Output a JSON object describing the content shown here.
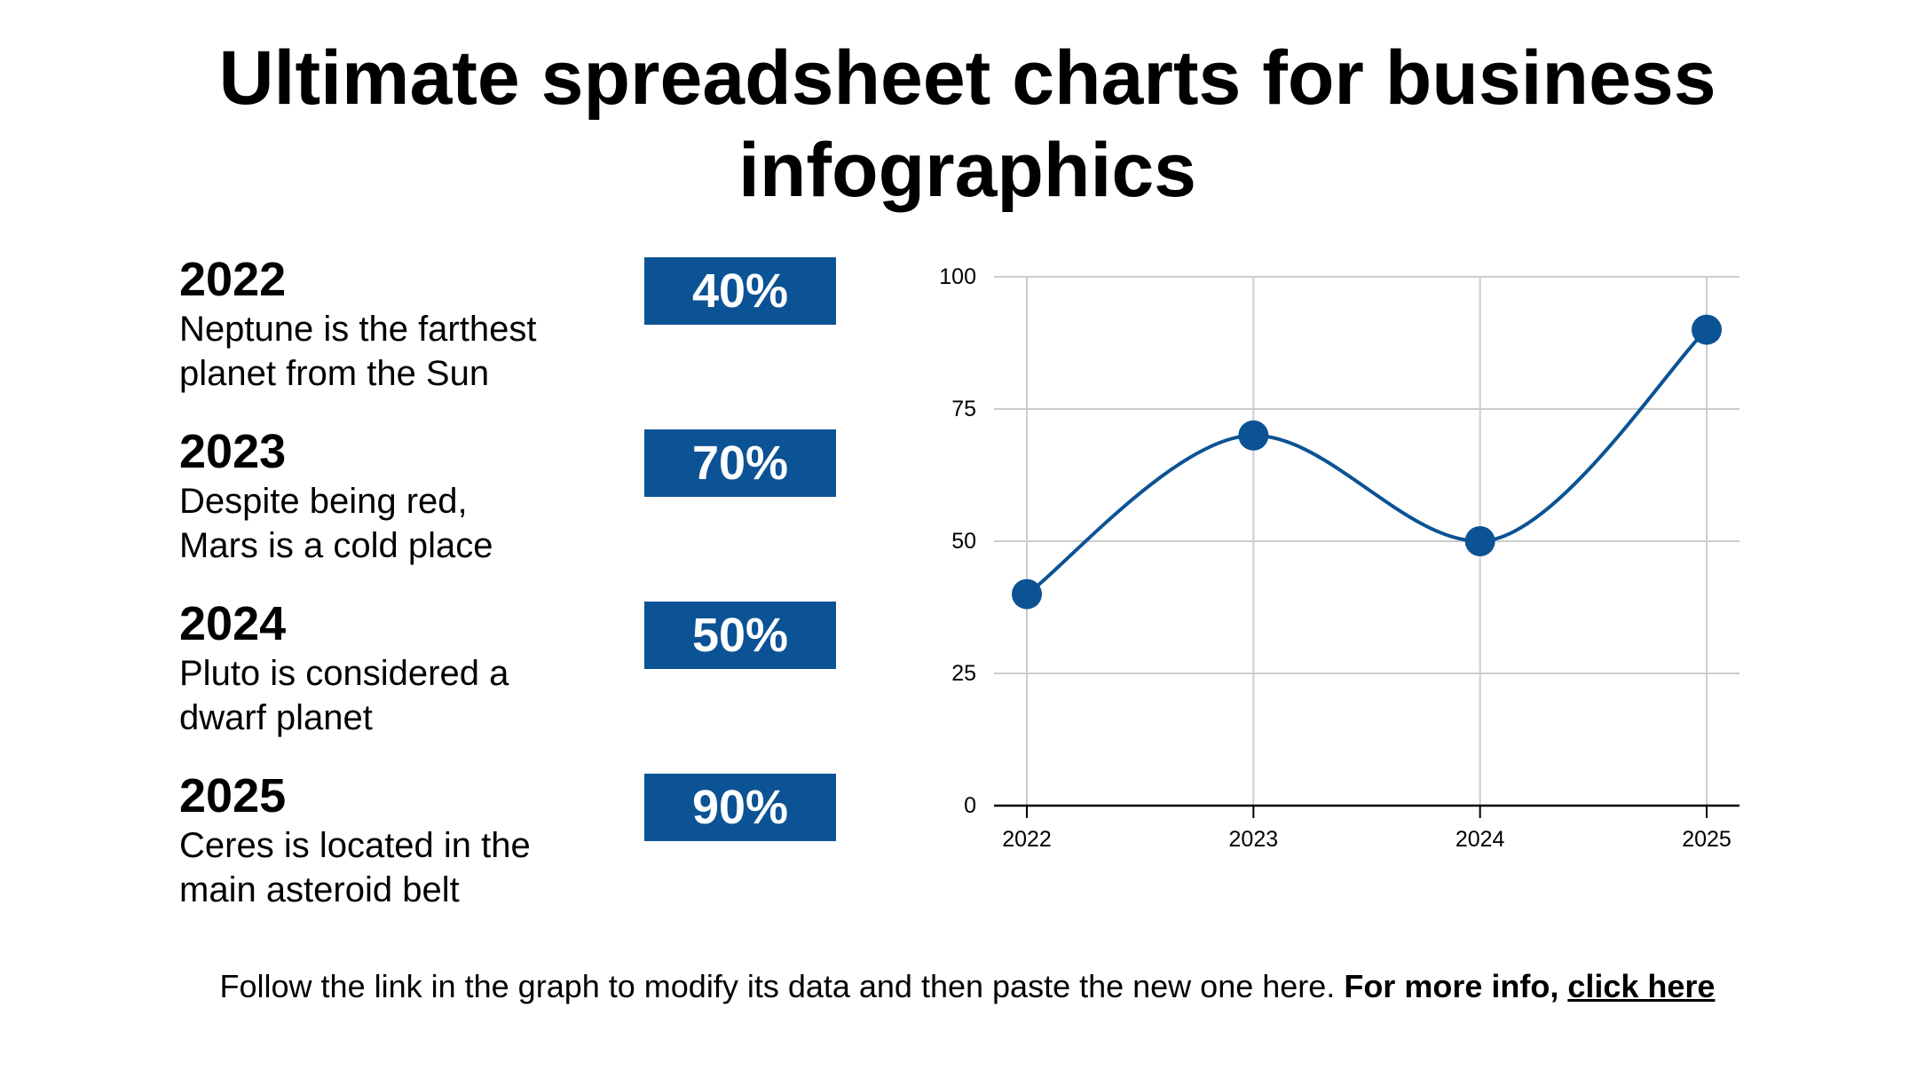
{
  "title": "Ultimate spreadsheet charts for business infographics",
  "entries": [
    {
      "year": "2022",
      "description": "Neptune is the farthest planet from the Sun",
      "percent": "40%"
    },
    {
      "year": "2023",
      "description": "Despite being red, Mars is a cold place",
      "percent": "70%"
    },
    {
      "year": "2024",
      "description": "Pluto is considered a dwarf planet",
      "percent": "50%"
    },
    {
      "year": "2025",
      "description": "Ceres is located in the main asteroid belt",
      "percent": "90%"
    }
  ],
  "colors": {
    "accent": "#0b5394",
    "grid": "#cccccc",
    "axis": "#000000",
    "text": "#000000",
    "badge_text": "#ffffff"
  },
  "chart_data": {
    "type": "line",
    "smooth": true,
    "markers": true,
    "categories": [
      "2022",
      "2023",
      "2024",
      "2025"
    ],
    "series": [
      {
        "values": [
          40,
          70,
          50,
          90
        ]
      }
    ],
    "ylim": [
      0,
      100
    ],
    "yticks": [
      0,
      25,
      50,
      75,
      100
    ],
    "grid": true,
    "legend": "none",
    "title": "",
    "xlabel": "",
    "ylabel": ""
  },
  "footer": {
    "text": "Follow the link in the graph to modify its data and then paste the new one here.",
    "bold_text": "For more info,",
    "link_text": "click here"
  }
}
